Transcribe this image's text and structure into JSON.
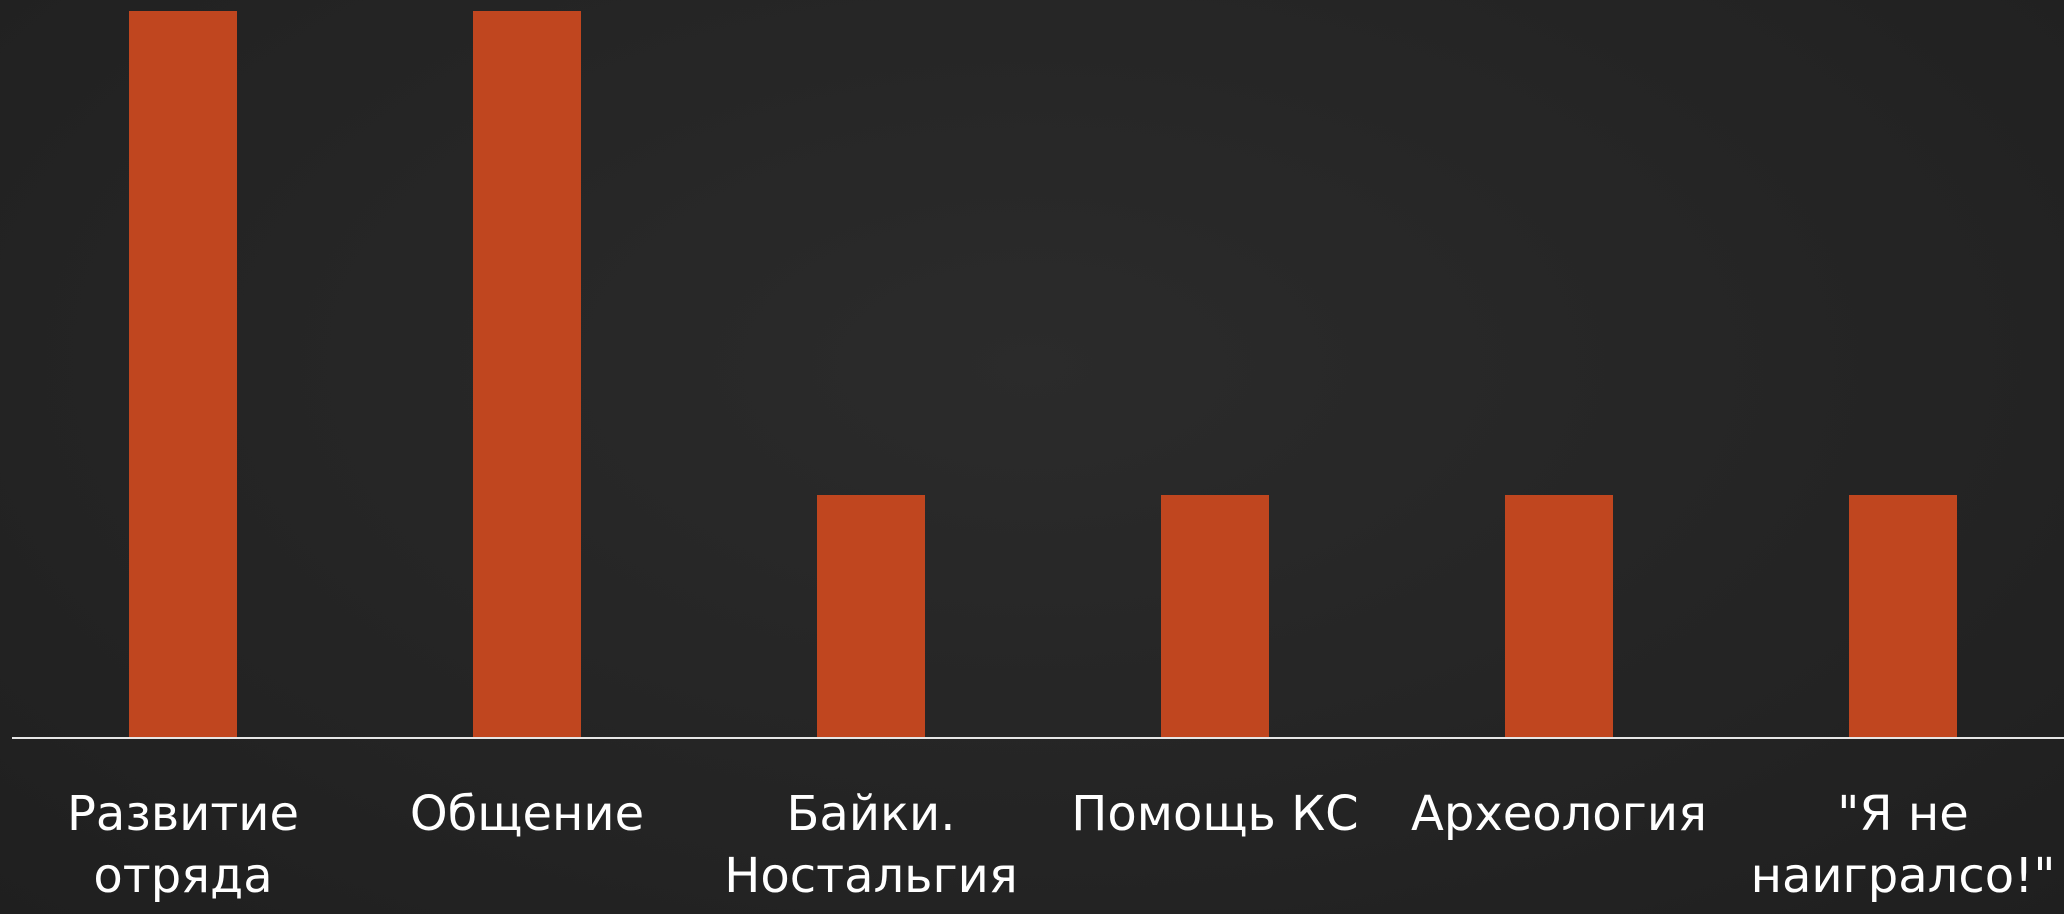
{
  "chart_data": {
    "type": "bar",
    "categories": [
      "Развитие отряда",
      "Общение",
      "Байки. Ностальгия",
      "Помощь КС",
      "Археология",
      "\"Я не наигралсо!\""
    ],
    "values": [
      3,
      3,
      1,
      1,
      1,
      1
    ],
    "title": "",
    "xlabel": "",
    "ylabel": "",
    "ylim": [
      0,
      3
    ],
    "grid": false,
    "legend": "none",
    "colors": {
      "bar": "#C0461F",
      "axis": "#E6E6E6",
      "label": "#FFFFFF",
      "background": "#262626"
    }
  }
}
